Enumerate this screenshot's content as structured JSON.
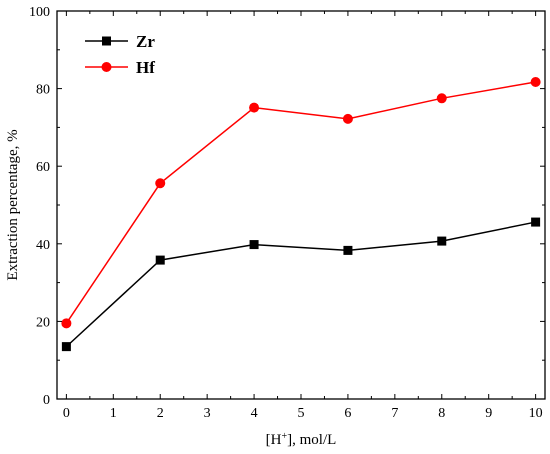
{
  "chart_data": {
    "type": "line",
    "xlabel_prefix": "[H",
    "xlabel_superscript": "+",
    "xlabel_suffix": "], mol/L",
    "ylabel": "Extraction percentage, %",
    "xlim": [
      -0.2,
      10.2
    ],
    "ylim": [
      0,
      100
    ],
    "x_ticks": [
      0,
      1,
      2,
      3,
      4,
      5,
      6,
      7,
      8,
      9,
      10
    ],
    "y_ticks": [
      0,
      20,
      40,
      60,
      80,
      100
    ],
    "x": [
      0,
      2,
      4,
      6,
      8,
      10
    ],
    "series": [
      {
        "name": "Zr",
        "values": [
          13.5,
          35.8,
          39.8,
          38.3,
          40.7,
          45.6
        ],
        "color": "#000000",
        "marker": "square"
      },
      {
        "name": "Hf",
        "values": [
          19.5,
          55.6,
          75.1,
          72.2,
          77.5,
          81.7
        ],
        "color": "#ff0000",
        "marker": "circle"
      }
    ],
    "legend_position": "top-left",
    "grid": false
  }
}
